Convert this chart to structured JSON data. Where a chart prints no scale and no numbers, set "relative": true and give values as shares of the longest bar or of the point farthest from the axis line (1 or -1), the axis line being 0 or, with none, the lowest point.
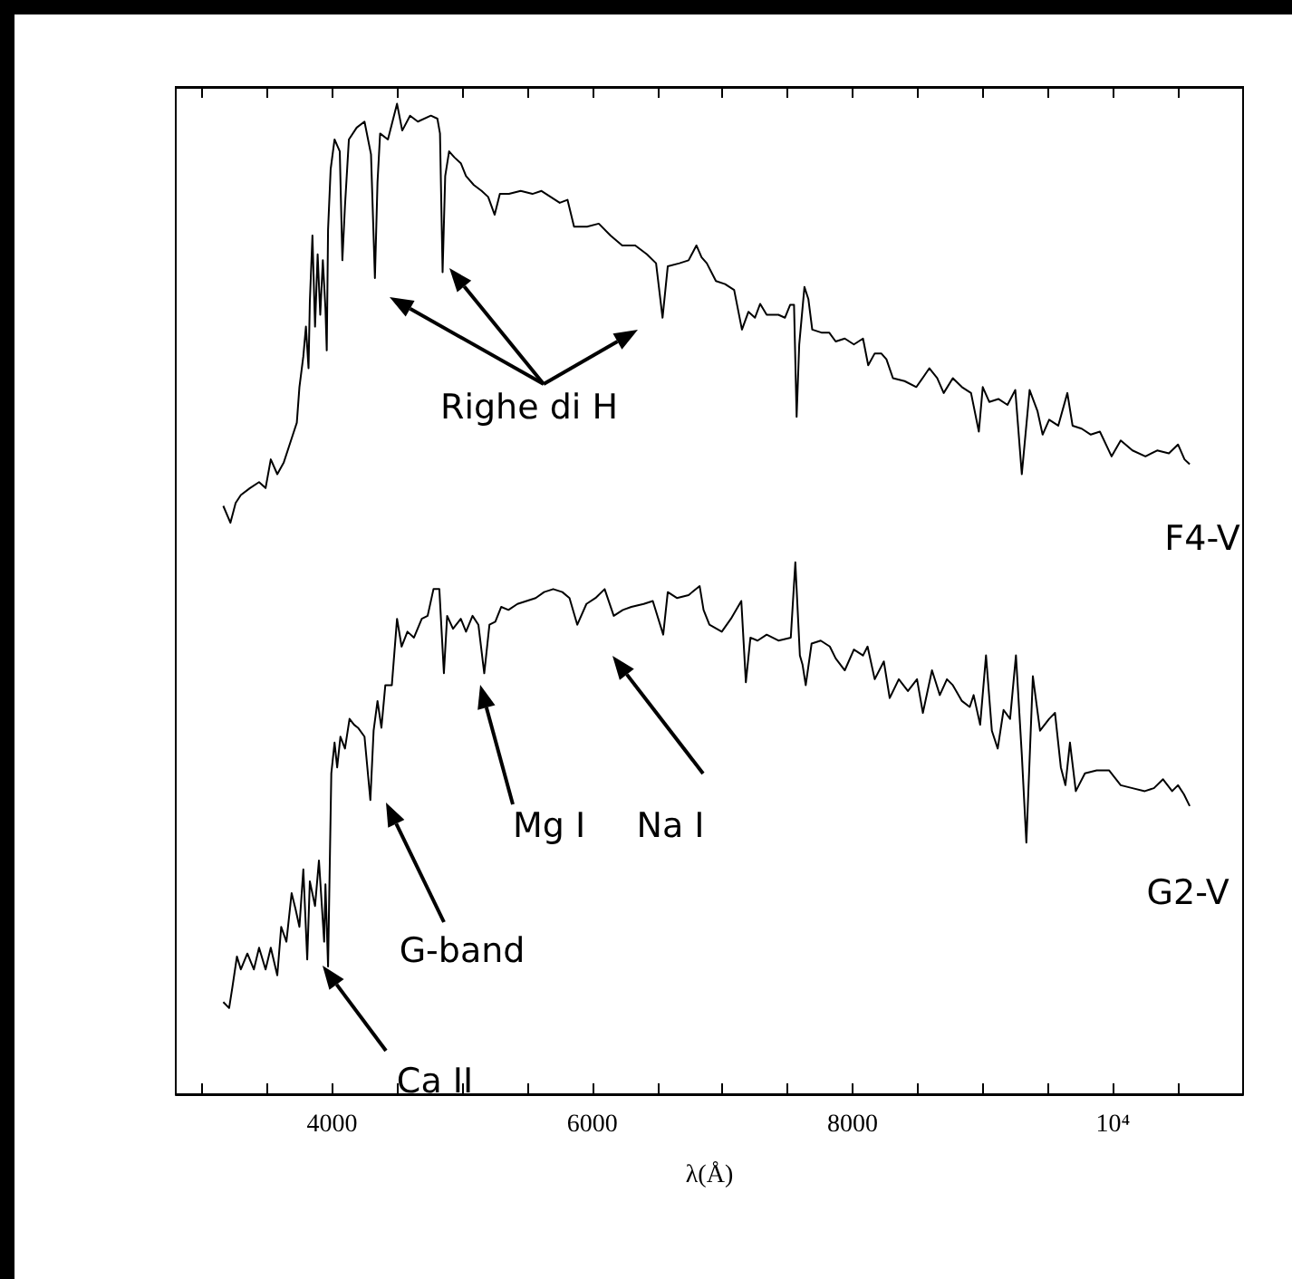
{
  "chart_data": {
    "type": "line",
    "relative": true,
    "xlabel": "λ(Å)",
    "xlim": [
      2800,
      11000
    ],
    "xticks": [
      {
        "value": 3000,
        "label": null
      },
      {
        "value": 3500,
        "label": null
      },
      4000,
      {
        "value": 4500,
        "label": null
      },
      {
        "value": 5000,
        "label": null
      },
      {
        "value": 5500,
        "label": null
      },
      6000,
      {
        "value": 6500,
        "label": null
      },
      {
        "value": 7000,
        "label": null
      },
      {
        "value": 7500,
        "label": null
      },
      8000,
      {
        "value": 8500,
        "label": null
      },
      {
        "value": 9000,
        "label": null
      },
      {
        "value": 9500,
        "label": null
      },
      {
        "value": 10000,
        "label": "10⁴"
      },
      {
        "value": 10500,
        "label": null
      }
    ],
    "series": [
      {
        "name": "F4-V",
        "color": "#000000",
        "x": [
          3165,
          3220,
          3260,
          3300,
          3370,
          3440,
          3490,
          3530,
          3580,
          3630,
          3700,
          3730,
          3750,
          3780,
          3800,
          3820,
          3830,
          3850,
          3870,
          3890,
          3910,
          3930,
          3950,
          3960,
          3970,
          3990,
          4020,
          4060,
          4080,
          4100,
          4130,
          4190,
          4250,
          4300,
          4330,
          4350,
          4370,
          4430,
          4500,
          4540,
          4600,
          4660,
          4760,
          4810,
          4830,
          4850,
          4870,
          4900,
          4940,
          4990,
          5030,
          5090,
          5150,
          5200,
          5250,
          5290,
          5360,
          5450,
          5540,
          5610,
          5680,
          5750,
          5810,
          5860,
          5960,
          6050,
          6140,
          6230,
          6330,
          6420,
          6490,
          6540,
          6580,
          6670,
          6740,
          6800,
          6840,
          6880,
          6950,
          7020,
          7090,
          7150,
          7200,
          7250,
          7290,
          7340,
          7430,
          7480,
          7520,
          7550,
          7570,
          7590,
          7630,
          7660,
          7690,
          7760,
          7820,
          7870,
          7940,
          8010,
          8080,
          8120,
          8170,
          8220,
          8260,
          8310,
          8400,
          8490,
          8590,
          8650,
          8700,
          8770,
          8840,
          8910,
          8970,
          9000,
          9050,
          9120,
          9190,
          9250,
          9300,
          9360,
          9420,
          9460,
          9510,
          9580,
          9650,
          9690,
          9760,
          9830,
          9900,
          9990,
          10060,
          10150,
          10250,
          10340,
          10430,
          10500,
          10550,
          10590
        ],
        "values": [
          0.594,
          0.577,
          0.597,
          0.605,
          0.612,
          0.618,
          0.612,
          0.641,
          0.626,
          0.638,
          0.666,
          0.678,
          0.714,
          0.745,
          0.775,
          0.733,
          0.8,
          0.867,
          0.775,
          0.848,
          0.787,
          0.842,
          0.793,
          0.751,
          0.873,
          0.934,
          0.964,
          0.952,
          0.842,
          0.897,
          0.964,
          0.976,
          0.982,
          0.949,
          0.824,
          0.921,
          0.97,
          0.964,
          1,
          0.973,
          0.988,
          0.982,
          0.988,
          0.985,
          0.97,
          0.83,
          0.927,
          0.952,
          0.946,
          0.94,
          0.927,
          0.918,
          0.912,
          0.906,
          0.888,
          0.909,
          0.909,
          0.912,
          0.909,
          0.912,
          0.906,
          0.9,
          0.903,
          0.876,
          0.876,
          0.879,
          0.867,
          0.857,
          0.857,
          0.848,
          0.839,
          0.784,
          0.836,
          0.839,
          0.842,
          0.857,
          0.845,
          0.839,
          0.821,
          0.818,
          0.812,
          0.772,
          0.79,
          0.784,
          0.798,
          0.787,
          0.787,
          0.784,
          0.797,
          0.797,
          0.684,
          0.757,
          0.815,
          0.803,
          0.772,
          0.769,
          0.769,
          0.76,
          0.763,
          0.757,
          0.763,
          0.736,
          0.748,
          0.748,
          0.742,
          0.723,
          0.72,
          0.714,
          0.733,
          0.723,
          0.708,
          0.723,
          0.714,
          0.708,
          0.669,
          0.714,
          0.699,
          0.702,
          0.696,
          0.711,
          0.626,
          0.711,
          0.69,
          0.666,
          0.681,
          0.675,
          0.708,
          0.675,
          0.672,
          0.666,
          0.669,
          0.644,
          0.66,
          0.65,
          0.644,
          0.65,
          0.647,
          0.656,
          0.641,
          0.636
        ]
      },
      {
        "name": "G2-V",
        "color": "#000000",
        "x": [
          3165,
          3210,
          3235,
          3270,
          3300,
          3350,
          3400,
          3440,
          3490,
          3530,
          3580,
          3610,
          3650,
          3690,
          3720,
          3750,
          3780,
          3810,
          3830,
          3870,
          3900,
          3940,
          3950,
          3970,
          3995,
          4020,
          4040,
          4065,
          4100,
          4135,
          4170,
          4200,
          4250,
          4295,
          4320,
          4350,
          4380,
          4410,
          4460,
          4500,
          4535,
          4580,
          4630,
          4690,
          4735,
          4780,
          4825,
          4860,
          4885,
          4930,
          4990,
          5030,
          5080,
          5125,
          5170,
          5210,
          5255,
          5300,
          5356,
          5425,
          5495,
          5565,
          5630,
          5700,
          5770,
          5825,
          5885,
          5955,
          6025,
          6095,
          6165,
          6235,
          6300,
          6395,
          6465,
          6545,
          6580,
          6650,
          6740,
          6825,
          6855,
          6900,
          6995,
          7065,
          7145,
          7180,
          7215,
          7270,
          7340,
          7430,
          7525,
          7560,
          7595,
          7615,
          7640,
          7685,
          7755,
          7825,
          7870,
          7940,
          8010,
          8080,
          8115,
          8170,
          8240,
          8285,
          8355,
          8425,
          8495,
          8540,
          8610,
          8670,
          8725,
          8770,
          8840,
          8900,
          8930,
          8980,
          9025,
          9070,
          9115,
          9160,
          9210,
          9255,
          9300,
          9335,
          9385,
          9440,
          9510,
          9555,
          9600,
          9635,
          9670,
          9715,
          9785,
          9875,
          9970,
          10060,
          10150,
          10245,
          10315,
          10385,
          10455,
          10500,
          10545,
          10590
        ],
        "values": [
          0.093,
          0.087,
          0.108,
          0.139,
          0.126,
          0.142,
          0.126,
          0.148,
          0.126,
          0.148,
          0.12,
          0.169,
          0.154,
          0.203,
          0.187,
          0.169,
          0.227,
          0.136,
          0.215,
          0.19,
          0.236,
          0.154,
          0.212,
          0.129,
          0.324,
          0.355,
          0.33,
          0.361,
          0.349,
          0.379,
          0.373,
          0.37,
          0.361,
          0.297,
          0.367,
          0.397,
          0.37,
          0.413,
          0.413,
          0.48,
          0.452,
          0.467,
          0.461,
          0.48,
          0.483,
          0.51,
          0.51,
          0.425,
          0.483,
          0.47,
          0.48,
          0.467,
          0.483,
          0.474,
          0.425,
          0.474,
          0.477,
          0.492,
          0.489,
          0.495,
          0.498,
          0.501,
          0.507,
          0.51,
          0.507,
          0.501,
          0.474,
          0.495,
          0.501,
          0.51,
          0.483,
          0.489,
          0.492,
          0.495,
          0.498,
          0.464,
          0.507,
          0.501,
          0.504,
          0.513,
          0.489,
          0.474,
          0.467,
          0.48,
          0.498,
          0.416,
          0.461,
          0.458,
          0.464,
          0.458,
          0.461,
          0.537,
          0.443,
          0.434,
          0.413,
          0.455,
          0.458,
          0.452,
          0.44,
          0.428,
          0.449,
          0.443,
          0.452,
          0.419,
          0.437,
          0.4,
          0.419,
          0.407,
          0.419,
          0.385,
          0.428,
          0.403,
          0.419,
          0.413,
          0.397,
          0.391,
          0.403,
          0.373,
          0.443,
          0.367,
          0.349,
          0.388,
          0.379,
          0.443,
          0.343,
          0.254,
          0.422,
          0.367,
          0.379,
          0.385,
          0.33,
          0.312,
          0.355,
          0.306,
          0.324,
          0.327,
          0.327,
          0.312,
          0.309,
          0.306,
          0.309,
          0.318,
          0.306,
          0.312,
          0.303,
          0.291
        ]
      }
    ],
    "annotations": [
      "Righe di H",
      "Mg I",
      "Na I",
      "G-band",
      "Ca II"
    ]
  }
}
